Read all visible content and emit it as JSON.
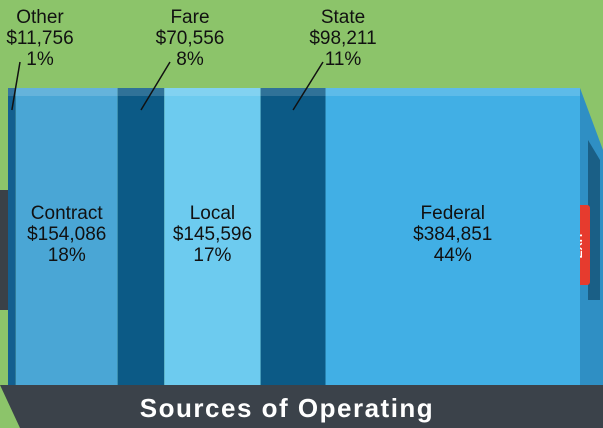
{
  "chart_data": {
    "type": "stacked-bar",
    "title": "Sources of Operating",
    "categories": [
      "Other",
      "Contract",
      "Fare",
      "Local",
      "State",
      "Federal"
    ],
    "values": [
      11756,
      154086,
      70556,
      145596,
      98211,
      384851
    ],
    "value_labels": [
      "$11,756",
      "$154,086",
      "$70,556",
      "$145,596",
      "$98,211",
      "$384,851"
    ],
    "shares": [
      1,
      18,
      8,
      17,
      11,
      44
    ],
    "share_labels": [
      "1%",
      "18%",
      "8%",
      "17%",
      "11%",
      "44%"
    ],
    "colors": [
      "#135f8f",
      "#4aa6d5",
      "#0c5a86",
      "#6dcbef",
      "#0c5a86",
      "#41afe5"
    ]
  }
}
